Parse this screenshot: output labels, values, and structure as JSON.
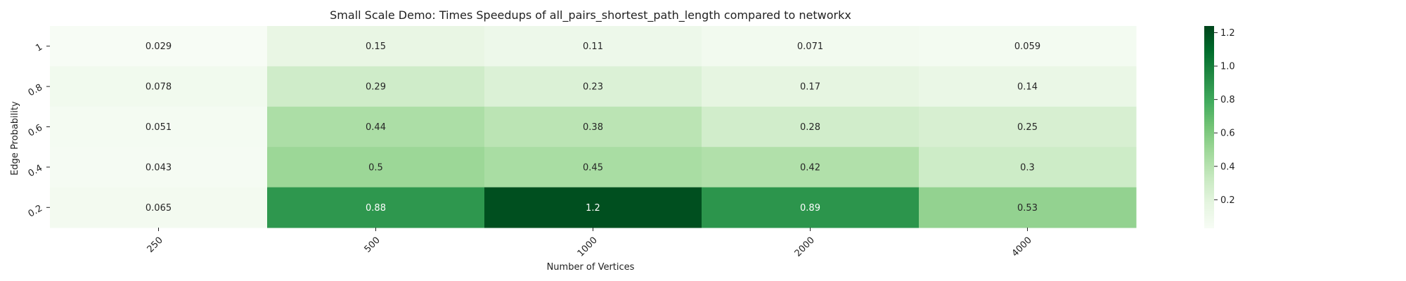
{
  "chart_data": {
    "type": "heatmap",
    "title": "Small Scale Demo: Times Speedups of all_pairs_shortest_path_length compared to networkx",
    "xlabel": "Number of Vertices",
    "ylabel": "Edge Probability",
    "x_categories": [
      "250",
      "500",
      "1000",
      "2000",
      "4000"
    ],
    "y_categories": [
      "1",
      "0.8",
      "0.6",
      "0.4",
      "0.2"
    ],
    "values": [
      [
        0.029,
        0.15,
        0.11,
        0.071,
        0.059
      ],
      [
        0.078,
        0.29,
        0.23,
        0.17,
        0.14
      ],
      [
        0.051,
        0.44,
        0.38,
        0.28,
        0.25
      ],
      [
        0.043,
        0.5,
        0.45,
        0.42,
        0.3
      ],
      [
        0.065,
        0.88,
        1.2,
        0.89,
        0.53
      ]
    ],
    "cell_labels": [
      [
        "0.029",
        "0.15",
        "0.11",
        "0.071",
        "0.059"
      ],
      [
        "0.078",
        "0.29",
        "0.23",
        "0.17",
        "0.14"
      ],
      [
        "0.051",
        "0.44",
        "0.38",
        "0.28",
        "0.25"
      ],
      [
        "0.043",
        "0.5",
        "0.45",
        "0.42",
        "0.3"
      ],
      [
        "0.065",
        "0.88",
        "1.2",
        "0.89",
        "0.53"
      ]
    ],
    "colormap": "Greens",
    "colorbar_range": [
      0.029,
      1.24
    ],
    "colorbar_ticks": [
      0.2,
      0.4,
      0.6,
      0.8,
      1.0,
      1.2
    ],
    "colorbar_tick_labels": [
      "0.2",
      "0.4",
      "0.6",
      "0.8",
      "1.0",
      "1.2"
    ],
    "grid": false,
    "colors": {
      "low": "#f7fcf5",
      "high": "#00441b",
      "text_dark": "#262626",
      "text_light": "#ffffff"
    }
  }
}
